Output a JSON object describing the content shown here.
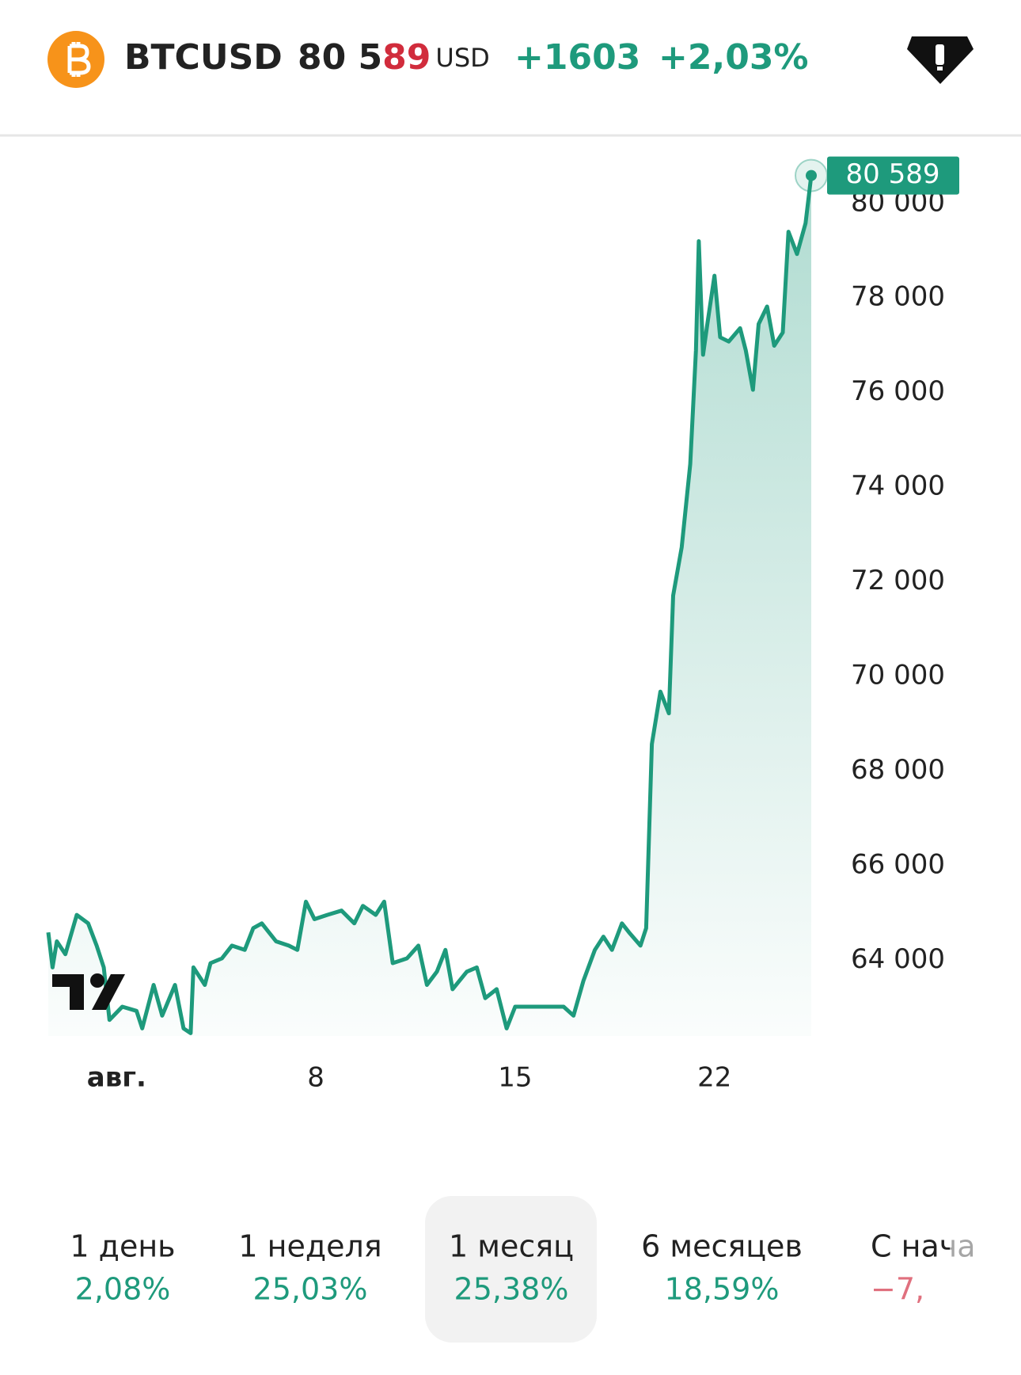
{
  "header": {
    "symbol": "BTCUSD",
    "price_main": "80 5",
    "price_tail": "89",
    "currency": "USD",
    "change": "+1603",
    "change_percent": "+2,03%"
  },
  "chart_data": {
    "type": "line",
    "x": [
      -1.4,
      -1.25,
      -1.1,
      -0.8,
      -0.4,
      0,
      0.3,
      0.55,
      0.75,
      1.2,
      1.7,
      1.9,
      2.3,
      2.6,
      3.05,
      3.35,
      3.6,
      3.7,
      4.1,
      4.3,
      4.7,
      5.05,
      5.5,
      5.8,
      6.1,
      6.6,
      7.05,
      7.35,
      7.65,
      7.95,
      8.4,
      8.9,
      9.35,
      9.65,
      10.1,
      10.4,
      10.7,
      11.2,
      11.6,
      11.9,
      12.25,
      12.55,
      12.8,
      13.3,
      13.65,
      13.95,
      14.35,
      14.7,
      15.0,
      15.6,
      16.25,
      16.7,
      17.05,
      17.4,
      17.8,
      18.1,
      18.4,
      18.75,
      19.0,
      19.4,
      19.6,
      19.8,
      20.1,
      20.4,
      20.55,
      20.85,
      21.15,
      21.35,
      21.45,
      21.6,
      21.75,
      22.0,
      22.2,
      22.5,
      22.9,
      23.1,
      23.35,
      23.55,
      23.85,
      24.1,
      24.4,
      24.6,
      24.9,
      25.2,
      25.4
    ],
    "series": [
      {
        "color": "#1e9a7c",
        "values": [
          64590,
          63850,
          64400,
          64130,
          64960,
          64780,
          64310,
          63850,
          62740,
          63020,
          62930,
          62560,
          63480,
          62830,
          63480,
          62560,
          62460,
          63850,
          63480,
          63940,
          64040,
          64310,
          64220,
          64680,
          64780,
          64400,
          64310,
          64220,
          65240,
          64870,
          64960,
          65050,
          64780,
          65150,
          64960,
          65240,
          63940,
          64040,
          64310,
          63480,
          63760,
          64220,
          63390,
          63760,
          63850,
          63200,
          63390,
          62560,
          63020,
          63020,
          63020,
          63020,
          62830,
          63570,
          64220,
          64500,
          64220,
          64780,
          64590,
          64310,
          64680,
          68570,
          69680,
          69220,
          71710,
          72730,
          74490,
          76890,
          79200,
          76800,
          77450,
          78470,
          77170,
          77080,
          77360,
          76890,
          76060,
          77450,
          77820,
          76990,
          77270,
          79400,
          78930,
          79580,
          80589
        ]
      }
    ],
    "current": {
      "value": 80589,
      "label": "80 589"
    },
    "xlim": [
      -1.4,
      25.4
    ],
    "xticks": [
      {
        "value": 1,
        "label": "авг."
      },
      8,
      15,
      22
    ],
    "ylim": [
      62400,
      80900
    ],
    "yticks": [
      {
        "value": 64000,
        "label": "64 000"
      },
      {
        "value": 66000,
        "label": "66 000"
      },
      {
        "value": 68000,
        "label": "68 000"
      },
      {
        "value": 70000,
        "label": "70 000"
      },
      {
        "value": 72000,
        "label": "72 000"
      },
      {
        "value": 74000,
        "label": "74 000"
      },
      {
        "value": 76000,
        "label": "76 000"
      },
      {
        "value": 78000,
        "label": "78 000"
      },
      {
        "value": 80000,
        "label": "80 000"
      }
    ]
  },
  "periods": [
    {
      "label": "1 день",
      "change": "2,08%"
    },
    {
      "label": "1 неделя",
      "change": "25,03%"
    },
    {
      "label": "1 месяц",
      "change": "25,38%"
    },
    {
      "label": "6 месяцев",
      "change": "18,59%"
    },
    {
      "label": "С нача",
      "change": "−7,"
    }
  ]
}
